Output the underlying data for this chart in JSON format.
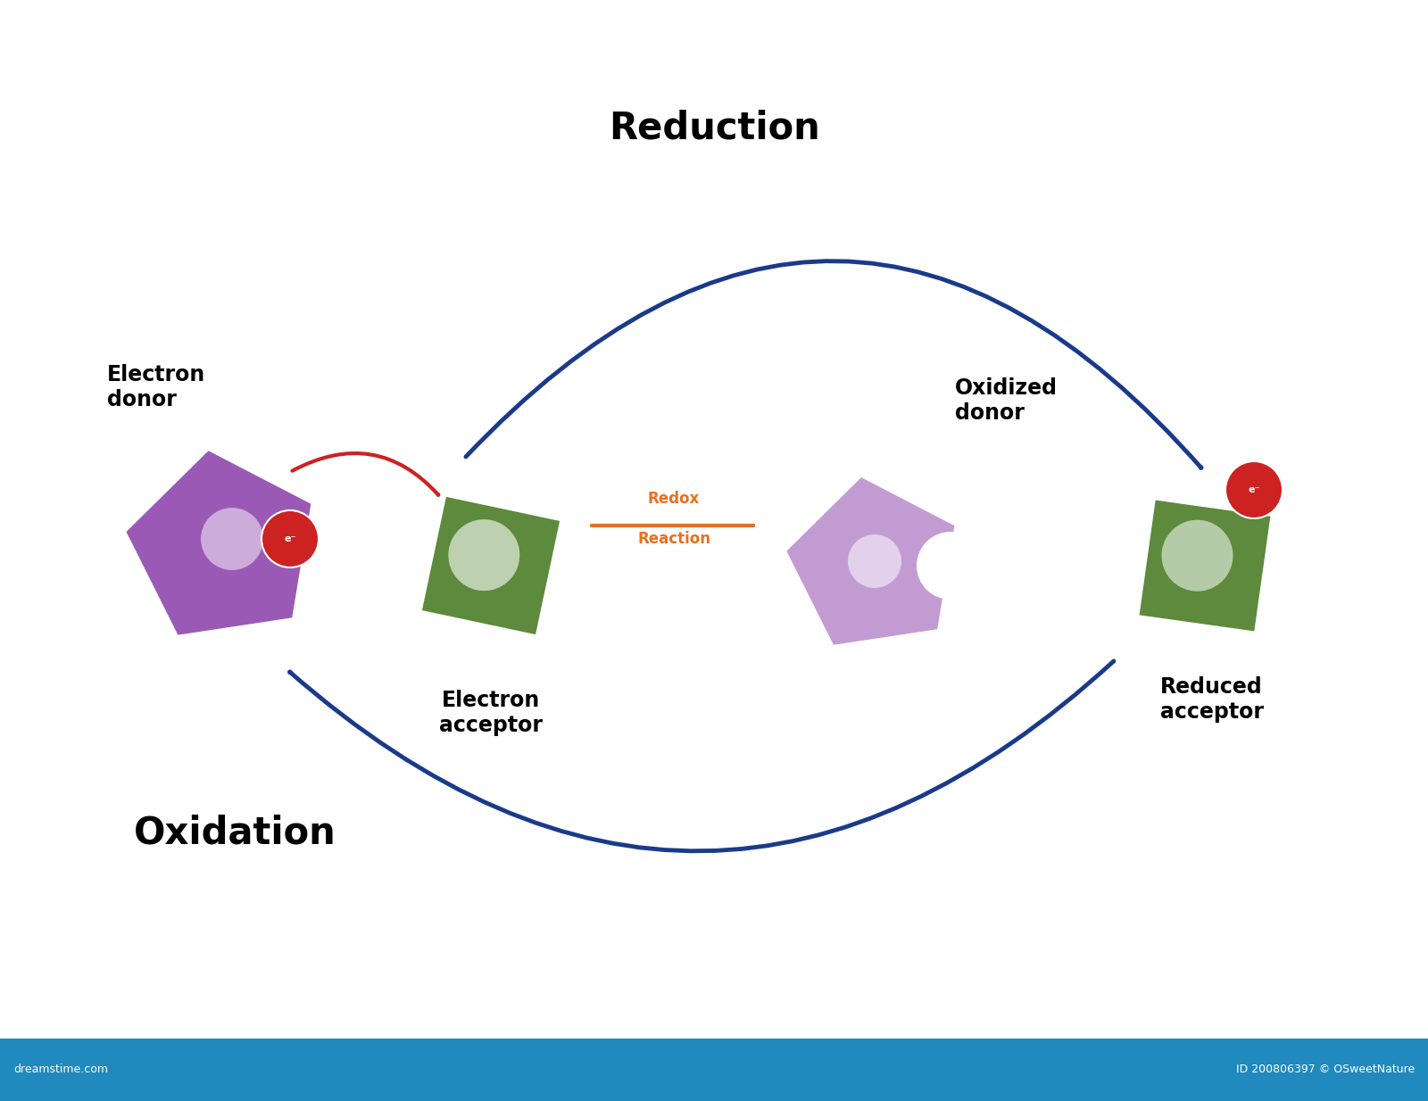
{
  "title": "Reduction",
  "oxidation_label": "Oxidation",
  "redox_label": "Redox\nReaction",
  "electron_donor_label": "Electron\ndonor",
  "electron_acceptor_label": "Electron\nacceptor",
  "oxidized_donor_label": "Oxidized\ndonor",
  "reduced_acceptor_label": "Reduced\nacceptor",
  "electron_symbol": "e⁻",
  "purple_color": "#9B59B6",
  "purple_light": "#C39BD3",
  "green_color": "#5D8A3C",
  "green_light": "#A8C87A",
  "red_color": "#CC2222",
  "blue_color": "#1A3A8A",
  "orange_color": "#E87020",
  "bg_color": "#FFFFFF",
  "footer_color": "#2089BE",
  "footer_text_color": "#FFFFFF",
  "dreamstime_text": "dreamstime.com",
  "id_text": "ID 200806397 © OSweetNature"
}
